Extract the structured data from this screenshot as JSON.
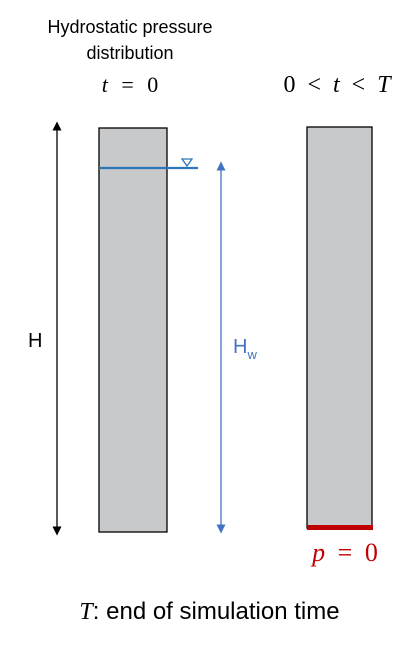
{
  "title_left_line1": "Hydrostatic pressure",
  "title_left_line2": "distribution",
  "time_left": {
    "var": "t",
    "eq": "=",
    "val": "0"
  },
  "time_right": {
    "a": "0",
    "lt1": "<",
    "t": "t",
    "lt2": "<",
    "T": "T"
  },
  "label_H": "H",
  "label_Hw_main": "H",
  "label_Hw_sub": "w",
  "bc_label": {
    "var": "p",
    "eq": "=",
    "val": "0"
  },
  "caption": {
    "var": "T",
    "rest": ": end of simulation time"
  },
  "colors": {
    "column_fill": "#c8c9ca",
    "water_line": "#2e75b6",
    "hw_arrow": "#4472c4",
    "bc_bar": "#c00000",
    "outline": "#000000"
  }
}
